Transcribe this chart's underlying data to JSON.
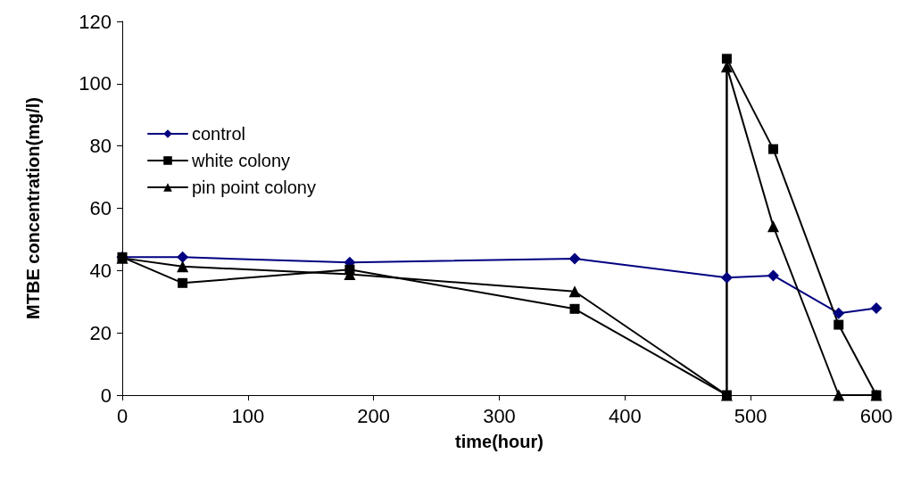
{
  "chart_data": {
    "type": "line",
    "xlabel": "time(hour)",
    "ylabel": "MTBE concentration(mg/l)",
    "xlim": [
      0,
      600
    ],
    "xticks": [
      0,
      100,
      200,
      300,
      400,
      500,
      600
    ],
    "ylim": [
      0,
      120
    ],
    "yticks": [
      0,
      20,
      40,
      60,
      80,
      100,
      120
    ],
    "grid": false,
    "legend": "top left",
    "line_style": "solid",
    "series": [
      {
        "name": "control",
        "color": "#000080",
        "marker": "diamond",
        "x": [
          0,
          48,
          181,
          360,
          481,
          518,
          570,
          600
        ],
        "values": [
          44.3,
          44.3,
          42.6,
          43.8,
          37.7,
          38.4,
          26.3,
          27.9
        ]
      },
      {
        "name": "white colony",
        "color": "#000000",
        "marker": "square",
        "x": [
          0,
          48,
          181,
          360,
          481,
          481,
          518,
          570,
          600
        ],
        "values": [
          44.3,
          36,
          40.3,
          27.7,
          0,
          108,
          79,
          22.6,
          0
        ]
      },
      {
        "name": "pin point colony",
        "color": "#000000",
        "marker": "triangle",
        "x": [
          0,
          48,
          181,
          360,
          481,
          481,
          518,
          570,
          600
        ],
        "values": [
          44,
          41.3,
          38.8,
          33.3,
          0,
          105.5,
          54.2,
          0,
          0
        ]
      }
    ]
  }
}
